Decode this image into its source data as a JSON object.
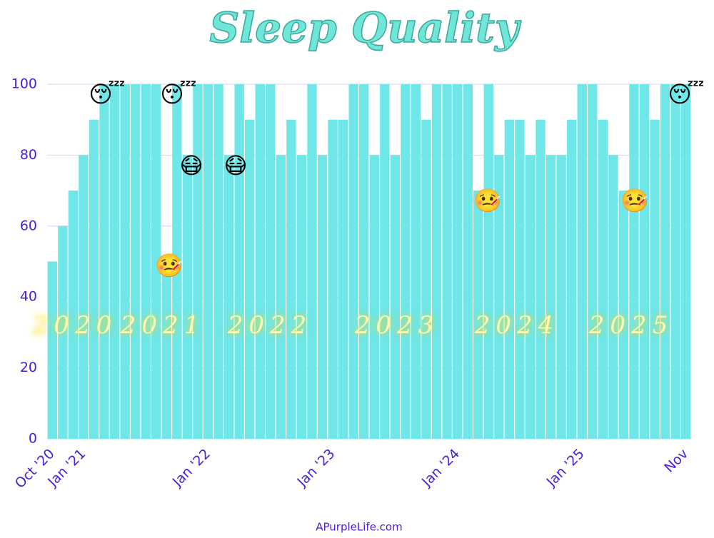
{
  "chart_data": {
    "type": "bar",
    "title": "Sleep Quality",
    "categories": [
      "Oct '20",
      null,
      null,
      "Jan '21",
      null,
      null,
      null,
      null,
      null,
      null,
      null,
      null,
      null,
      null,
      null,
      "Jan '22",
      null,
      null,
      null,
      null,
      null,
      null,
      null,
      null,
      null,
      null,
      null,
      "Jan '23",
      null,
      null,
      null,
      null,
      null,
      null,
      null,
      null,
      null,
      null,
      null,
      "Jan '24",
      null,
      null,
      null,
      null,
      null,
      null,
      null,
      null,
      null,
      null,
      null,
      "Jan '25",
      null,
      null,
      null,
      null,
      null,
      null,
      null,
      null,
      null,
      "Nov"
    ],
    "values": [
      50,
      60,
      70,
      80,
      90,
      100,
      100,
      100,
      100,
      100,
      100,
      50,
      100,
      80,
      100,
      100,
      100,
      80,
      100,
      90,
      100,
      100,
      80,
      90,
      80,
      100,
      80,
      90,
      90,
      100,
      100,
      80,
      100,
      80,
      100,
      100,
      90,
      100,
      100,
      100,
      100,
      70,
      100,
      80,
      90,
      90,
      80,
      90,
      80,
      80,
      90,
      100,
      100,
      90,
      80,
      70,
      100,
      100,
      90,
      100,
      100,
      100
    ],
    "color": "#6fe6e8",
    "ylim": [
      0,
      100
    ],
    "yticks": [
      0,
      20,
      40,
      60,
      80,
      100
    ],
    "grid": true,
    "year_labels": [
      "2020",
      "2021",
      "2022",
      "2023",
      "2024",
      "2025"
    ],
    "annotations": [
      "😴",
      "😴",
      "😴",
      "😷",
      "😷",
      "🤒",
      "🤒",
      "🤒"
    ],
    "footer": "APurpleLife.com"
  }
}
